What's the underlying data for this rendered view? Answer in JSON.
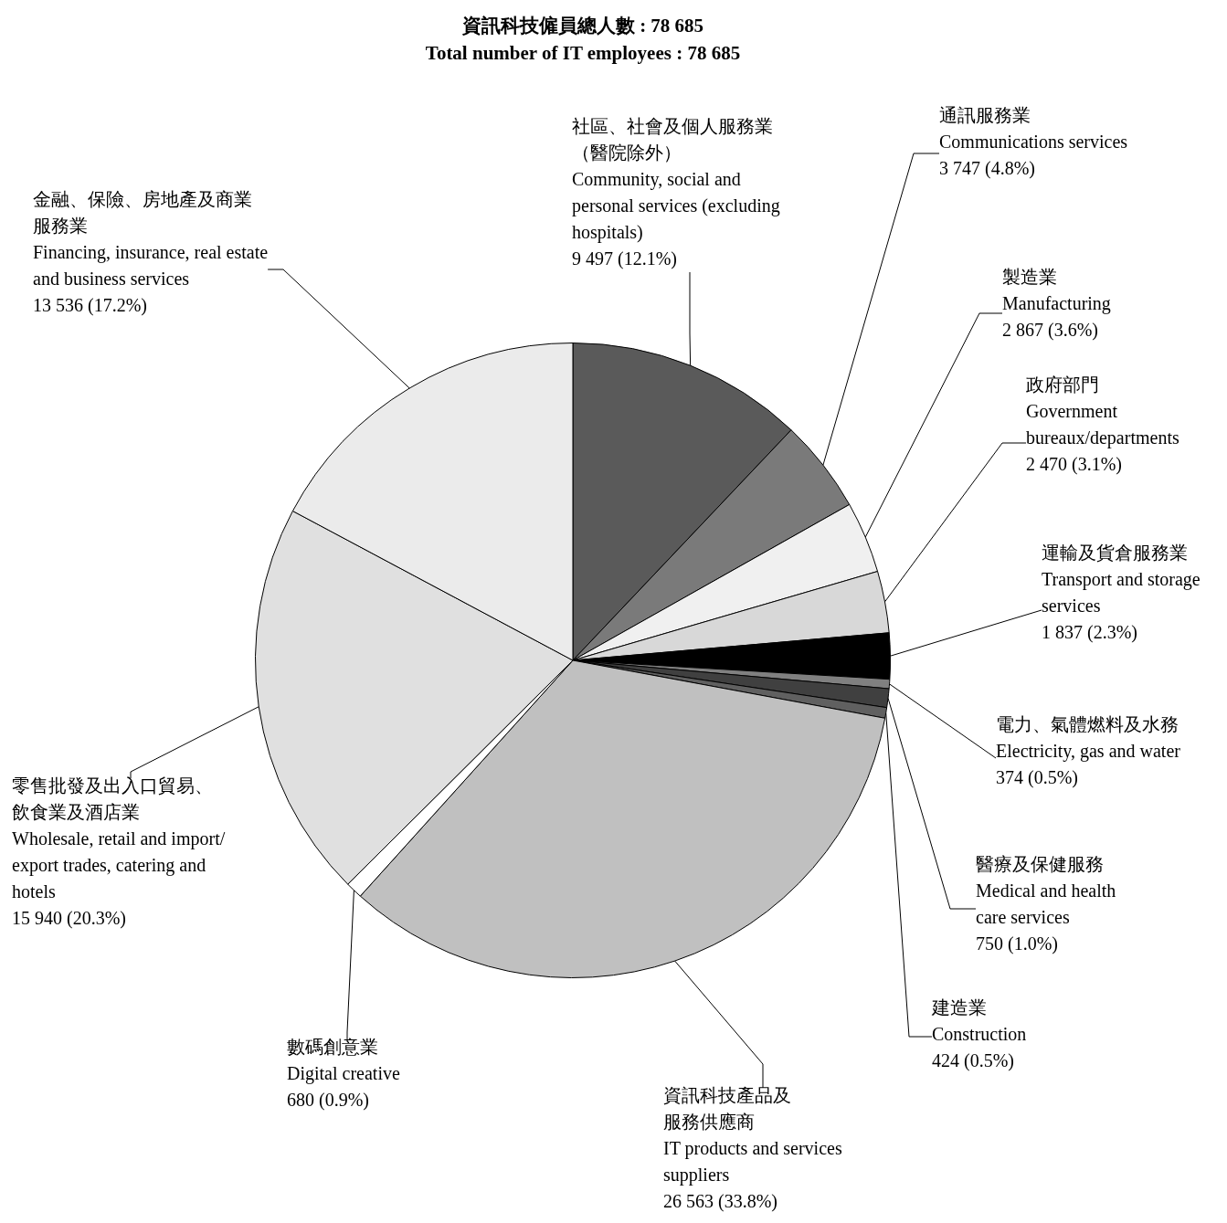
{
  "chart_data": {
    "type": "pie",
    "title": "資訊科技僱員總人數 : 78 685",
    "subtitle": "Total number of IT employees : 78 685",
    "categories": [
      "社區、社會及個人服務業（醫院除外）\nCommunity, social and personal services (excluding hospitals)",
      "通訊服務業\nCommunications services",
      "製造業\nManufacturing",
      "政府部門\nGovernment bureaux/departments",
      "運輸及貨倉服務業\nTransport and storage services",
      "電力、氣體燃料及水務\nElectricity, gas and water",
      "醫療及保健服務\nMedical and health care services",
      "建造業\nConstruction",
      "資訊科技產品及服務供應商\nIT products and services suppliers",
      "數碼創意業\nDigital creative",
      "零售批發及出入口貿易、飲食業及酒店業\nWholesale, retail and import/ export trades, catering and hotels",
      "金融、保險、房地產及商業服務業\nFinancing, insurance, real estate and business services"
    ],
    "values": [
      9497,
      3747,
      2867,
      2470,
      1837,
      374,
      750,
      424,
      26563,
      680,
      15940,
      13536
    ],
    "value_labels": [
      "9 497 (12.1%)",
      "3 747 (4.8%)",
      "2 867 (3.6%)",
      "2 470 (3.1%)",
      "1 837 (2.3%)",
      "374 (0.5%)",
      "750 (1.0%)",
      "424 (0.5%)",
      "26 563 (33.8%)",
      "680 (0.9%)",
      "15 940 (20.3%)",
      "13 536 (17.2%)"
    ],
    "colors": [
      "#5a5a5a",
      "#7a7a7a",
      "#f0f0f0",
      "#d8d8d8",
      "#000000",
      "#808080",
      "#404040",
      "#606060",
      "#c0c0c0",
      "#ffffff",
      "#e0e0e0",
      "#ebebeb"
    ],
    "legend": false
  }
}
